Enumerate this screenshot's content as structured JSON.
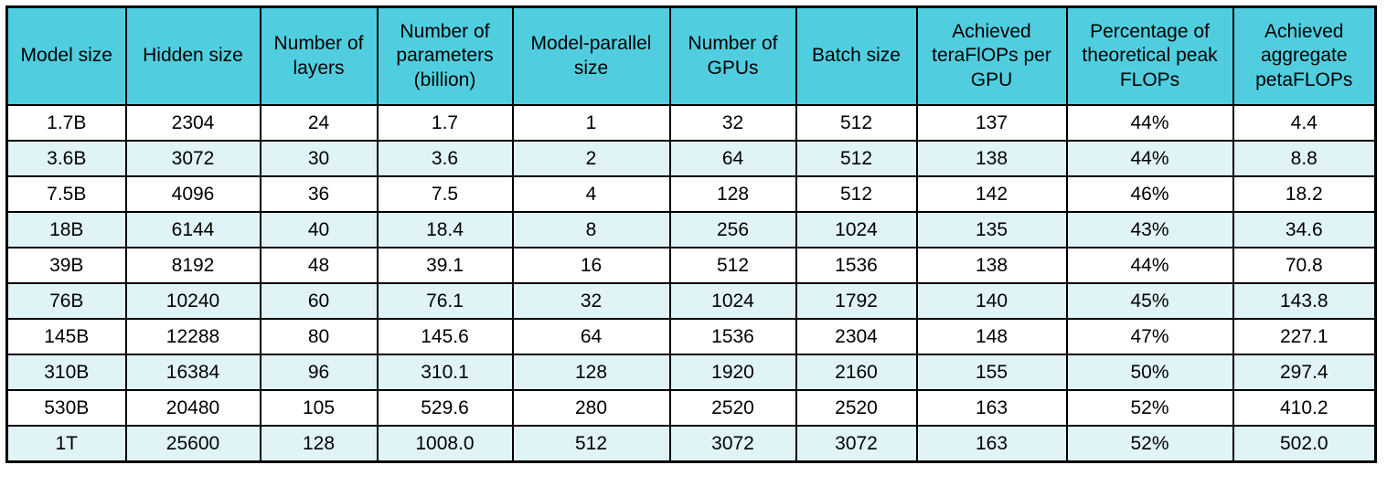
{
  "table": {
    "name": "model-scaling-throughput-table",
    "columns": [
      {
        "label": "Model size"
      },
      {
        "label": "Hidden size"
      },
      {
        "label": "Number of layers"
      },
      {
        "label": "Number of parameters (billion)"
      },
      {
        "label": "Model-parallel size"
      },
      {
        "label": "Number of GPUs"
      },
      {
        "label": "Batch size"
      },
      {
        "label": "Achieved teraFlOPs per GPU"
      },
      {
        "label": "Percentage of theoretical peak FLOPs"
      },
      {
        "label": "Achieved aggregate petaFLOPs"
      }
    ],
    "rows": [
      [
        "1.7B",
        "2304",
        "24",
        "1.7",
        "1",
        "32",
        "512",
        "137",
        "44%",
        "4.4"
      ],
      [
        "3.6B",
        "3072",
        "30",
        "3.6",
        "2",
        "64",
        "512",
        "138",
        "44%",
        "8.8"
      ],
      [
        "7.5B",
        "4096",
        "36",
        "7.5",
        "4",
        "128",
        "512",
        "142",
        "46%",
        "18.2"
      ],
      [
        "18B",
        "6144",
        "40",
        "18.4",
        "8",
        "256",
        "1024",
        "135",
        "43%",
        "34.6"
      ],
      [
        "39B",
        "8192",
        "48",
        "39.1",
        "16",
        "512",
        "1536",
        "138",
        "44%",
        "70.8"
      ],
      [
        "76B",
        "10240",
        "60",
        "76.1",
        "32",
        "1024",
        "1792",
        "140",
        "45%",
        "143.8"
      ],
      [
        "145B",
        "12288",
        "80",
        "145.6",
        "64",
        "1536",
        "2304",
        "148",
        "47%",
        "227.1"
      ],
      [
        "310B",
        "16384",
        "96",
        "310.1",
        "128",
        "1920",
        "2160",
        "155",
        "50%",
        "297.4"
      ],
      [
        "530B",
        "20480",
        "105",
        "529.6",
        "280",
        "2520",
        "2520",
        "163",
        "52%",
        "410.2"
      ],
      [
        "1T",
        "25600",
        "128",
        "1008.0",
        "512",
        "3072",
        "3072",
        "163",
        "52%",
        "502.0"
      ]
    ],
    "colors": {
      "header_bg": "#50cedf",
      "row_bg": "#ffffff",
      "row_alt_bg": "#e0f4f8",
      "border": "#000000"
    }
  }
}
